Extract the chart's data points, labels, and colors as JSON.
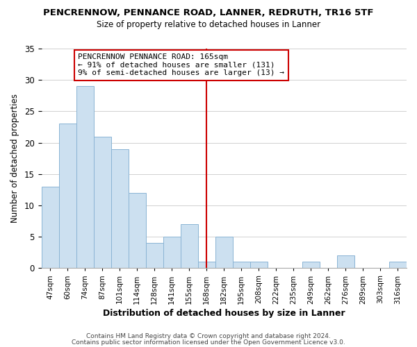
{
  "title": "PENCRENNOW, PENNANCE ROAD, LANNER, REDRUTH, TR16 5TF",
  "subtitle": "Size of property relative to detached houses in Lanner",
  "xlabel": "Distribution of detached houses by size in Lanner",
  "ylabel": "Number of detached properties",
  "bar_color": "#cce0f0",
  "bar_edge_color": "#8ab4d4",
  "categories": [
    "47sqm",
    "60sqm",
    "74sqm",
    "87sqm",
    "101sqm",
    "114sqm",
    "128sqm",
    "141sqm",
    "155sqm",
    "168sqm",
    "182sqm",
    "195sqm",
    "208sqm",
    "222sqm",
    "235sqm",
    "249sqm",
    "262sqm",
    "276sqm",
    "289sqm",
    "303sqm",
    "316sqm"
  ],
  "values": [
    13,
    23,
    29,
    21,
    19,
    12,
    4,
    5,
    7,
    1,
    5,
    1,
    1,
    0,
    0,
    1,
    0,
    2,
    0,
    0,
    1
  ],
  "vline_color": "#cc0000",
  "annotation_line1": "PENCRENNOW PENNANCE ROAD: 165sqm",
  "annotation_line2": "← 91% of detached houses are smaller (131)",
  "annotation_line3": "9% of semi-detached houses are larger (13) →",
  "ylim": [
    0,
    35
  ],
  "yticks": [
    0,
    5,
    10,
    15,
    20,
    25,
    30,
    35
  ],
  "footer1": "Contains HM Land Registry data © Crown copyright and database right 2024.",
  "footer2": "Contains public sector information licensed under the Open Government Licence v3.0.",
  "background_color": "#ffffff",
  "grid_color": "#d0d0d0"
}
